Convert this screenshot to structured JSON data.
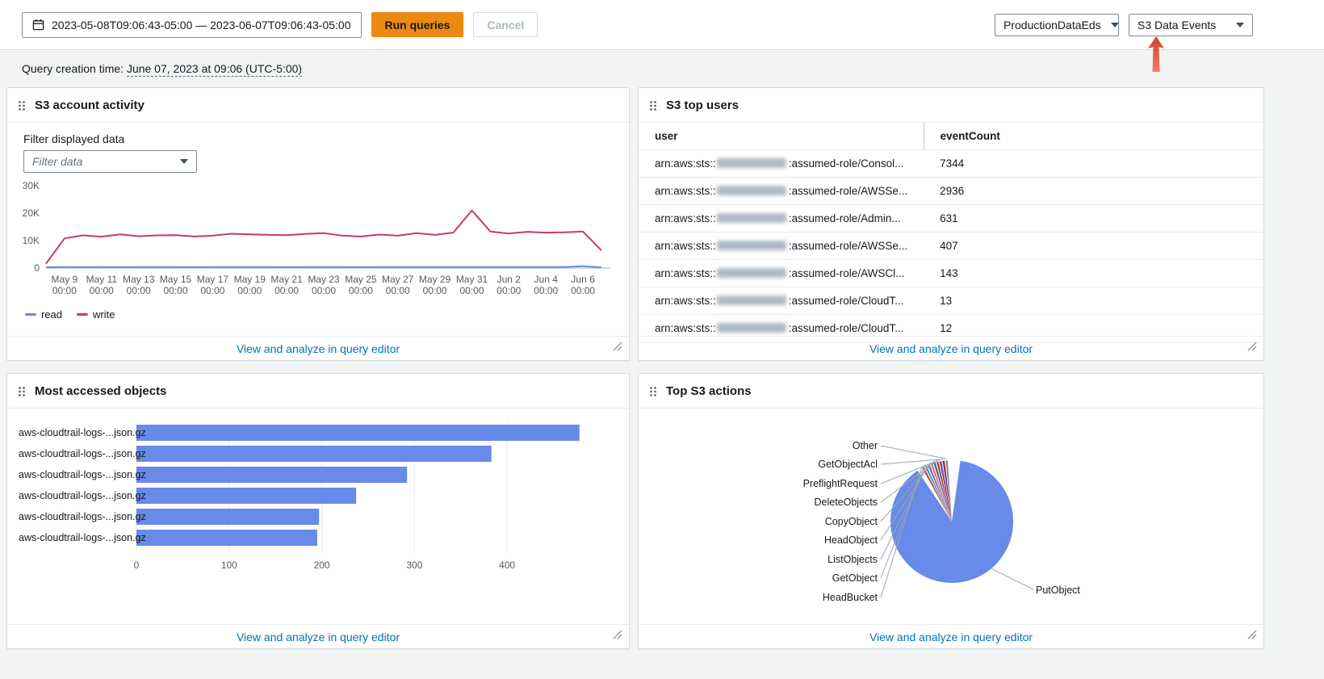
{
  "toolbar": {
    "date_range": "2023-05-08T09:06:43-05:00 — 2023-06-07T09:06:43-05:00",
    "run_label": "Run queries",
    "cancel_label": "Cancel",
    "event_data_store_selector": "ProductionDataEds",
    "dashboard_selector": "S3 Data Events"
  },
  "query_creation": {
    "prefix": "Query creation time: ",
    "time": "June 07, 2023 at 09:06 (UTC-5:00)"
  },
  "panels": {
    "account_activity": {
      "title": "S3 account activity",
      "filter_label": "Filter displayed data",
      "filter_placeholder": "Filter data",
      "footer_link": "View and analyze in query editor"
    },
    "top_users": {
      "title": "S3 top users",
      "columns": [
        "user",
        "eventCount"
      ],
      "rows": [
        {
          "user_prefix": "arn:aws:sts::",
          "user_suffix": ":assumed-role/Consol...",
          "event_count": "7344"
        },
        {
          "user_prefix": "arn:aws:sts::",
          "user_suffix": ":assumed-role/AWSSe...",
          "event_count": "2936"
        },
        {
          "user_prefix": "arn:aws:sts::",
          "user_suffix": ":assumed-role/Admin...",
          "event_count": "631"
        },
        {
          "user_prefix": "arn:aws:sts::",
          "user_suffix": ":assumed-role/AWSSe...",
          "event_count": "407"
        },
        {
          "user_prefix": "arn:aws:sts::",
          "user_suffix": ":assumed-role/AWSCl...",
          "event_count": "143"
        },
        {
          "user_prefix": "arn:aws:sts::",
          "user_suffix": ":assumed-role/CloudT...",
          "event_count": "13"
        },
        {
          "user_prefix": "arn:aws:sts::",
          "user_suffix": ":assumed-role/CloudT...",
          "event_count": "12"
        }
      ],
      "footer_link": "View and analyze in query editor"
    },
    "most_accessed": {
      "title": "Most accessed objects",
      "footer_link": "View and analyze in query editor"
    },
    "top_actions": {
      "title": "Top S3 actions",
      "footer_link": "View and analyze in query editor"
    }
  },
  "icons": {
    "date_picker": "calendar-icon",
    "select_caret": "chevron-down-icon",
    "drag_handle": "drag-handle-icon",
    "resize": "resize-handle-icon",
    "annotation": "red-arrow-up-icon"
  },
  "colors": {
    "primary_button": "#ec8911",
    "link": "#0073bb",
    "read_series": "#688ae8",
    "write_series": "#c33d69",
    "bar": "#688ae8",
    "annotation_arrow": "#e25740"
  },
  "chart_data": [
    {
      "type": "line",
      "title": "S3 account activity",
      "x_ticks": [
        "May 9",
        "May 11",
        "May 13",
        "May 15",
        "May 17",
        "May 19",
        "May 21",
        "May 23",
        "May 25",
        "May 27",
        "May 29",
        "May 31",
        "Jun 2",
        "Jun 4",
        "Jun 6"
      ],
      "x_tick_sub": "00:00",
      "y_ticks": [
        "0",
        "10K",
        "20K",
        "30K"
      ],
      "ylim": [
        0,
        30000
      ],
      "legend_position": "bottom-left",
      "series": [
        {
          "name": "read",
          "color": "#688ae8",
          "values": [
            300,
            350,
            320,
            340,
            330,
            340,
            350,
            340,
            330,
            340,
            360,
            350,
            340,
            330,
            350,
            360,
            340,
            330,
            350,
            340,
            360,
            350,
            340,
            360,
            380,
            360,
            380,
            370,
            380,
            700,
            200
          ]
        },
        {
          "name": "write",
          "color": "#c33d69",
          "values": [
            1600,
            10800,
            11900,
            11400,
            12300,
            11600,
            11900,
            12000,
            11500,
            11800,
            12500,
            12300,
            12100,
            12000,
            12400,
            12700,
            11800,
            11500,
            12200,
            11800,
            12700,
            12100,
            12900,
            21000,
            13300,
            12600,
            13200,
            12900,
            13000,
            13300,
            6400
          ]
        }
      ]
    },
    {
      "type": "bar",
      "orientation": "horizontal",
      "title": "Most accessed objects",
      "categories": [
        "aws-cloudtrail-logs-...json.gz",
        "aws-cloudtrail-logs-...json.gz",
        "aws-cloudtrail-logs-...json.gz",
        "aws-cloudtrail-logs-...json.gz",
        "aws-cloudtrail-logs-...json.gz",
        "aws-cloudtrail-logs-...json.gz"
      ],
      "values": [
        478,
        383,
        292,
        237,
        197,
        195
      ],
      "xlim": [
        0,
        500
      ],
      "x_ticks": [
        0,
        100,
        200,
        300,
        400
      ],
      "color": "#688ae8"
    },
    {
      "type": "pie",
      "title": "Top S3 actions",
      "slices": [
        {
          "label": "Other",
          "value": 0.3,
          "color": "#7d8998"
        },
        {
          "label": "GetObjectAcl",
          "value": 0.3,
          "color": "#962249"
        },
        {
          "label": "PreflightRequest",
          "value": 0.4,
          "color": "#6237a7"
        },
        {
          "label": "DeleteObjects",
          "value": 0.5,
          "color": "#a84401"
        },
        {
          "label": "CopyObject",
          "value": 0.6,
          "color": "#3759ce"
        },
        {
          "label": "HeadObject",
          "value": 1.4,
          "color": "#e07941"
        },
        {
          "label": "ListObjects",
          "value": 1.1,
          "color": "#8456ce"
        },
        {
          "label": "GetObject",
          "value": 2.1,
          "color": "#2ea597"
        },
        {
          "label": "HeadBucket",
          "value": 0.8,
          "color": "#c33d69"
        },
        {
          "label": "PutObject",
          "value": 92.5,
          "color": "#688ae8"
        }
      ]
    }
  ]
}
